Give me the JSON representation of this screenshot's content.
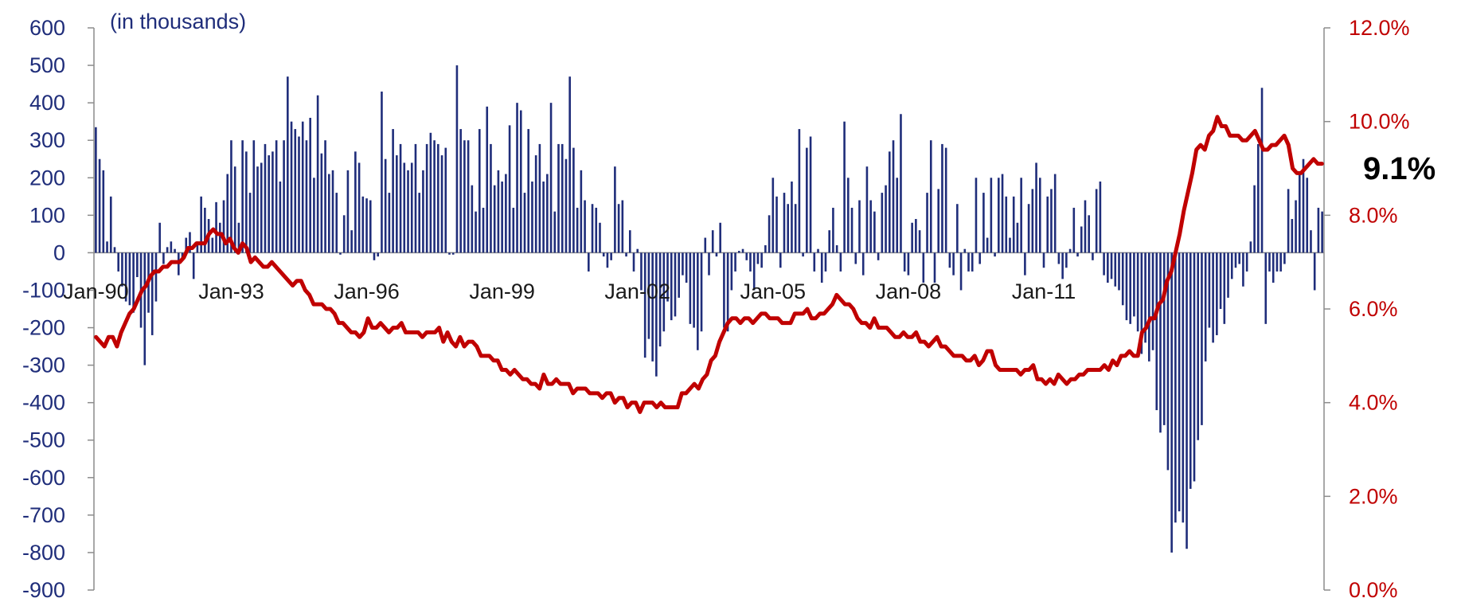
{
  "chart_data": {
    "type": "bar",
    "units_label": "(in thousands)",
    "callout": "9.1%",
    "colors": {
      "bars": "#1f2d7a",
      "line": "#c00000",
      "left_axis_text": "#1f2d7a",
      "right_axis_text": "#c00000",
      "axis": "#8c8c8c"
    },
    "left_axis": {
      "ylim": [
        -900,
        600
      ],
      "ticks": [
        600,
        500,
        400,
        300,
        200,
        100,
        0,
        -100,
        -200,
        -300,
        -400,
        -500,
        -600,
        -700,
        -800,
        -900
      ]
    },
    "right_axis": {
      "ylim": [
        0,
        12
      ],
      "ticks": [
        "12.0%",
        "10.0%",
        "8.0%",
        "6.0%",
        "4.0%",
        "2.0%",
        "0.0%"
      ]
    },
    "x_axis": {
      "start": "Jan-90",
      "end": "Aug-11",
      "tick_labels": [
        "Jan-90",
        "Jan-93",
        "Jan-96",
        "Jan-99",
        "Jan-02",
        "Jan-05",
        "Jan-08",
        "Jan-11"
      ]
    },
    "series": [
      {
        "kind": "bar",
        "axis": "left",
        "values": [
          335,
          250,
          220,
          30,
          150,
          15,
          -50,
          -90,
          -130,
          -140,
          -160,
          -65,
          -200,
          -300,
          -160,
          -220,
          -130,
          80,
          -30,
          15,
          30,
          10,
          -60,
          -20,
          40,
          55,
          -70,
          30,
          150,
          120,
          90,
          40,
          135,
          80,
          140,
          210,
          300,
          230,
          80,
          300,
          270,
          160,
          300,
          230,
          240,
          290,
          260,
          270,
          300,
          190,
          300,
          470,
          350,
          330,
          310,
          350,
          300,
          360,
          200,
          420,
          265,
          300,
          210,
          220,
          160,
          -5,
          100,
          220,
          60,
          270,
          240,
          150,
          145,
          140,
          -20,
          -10,
          430,
          250,
          160,
          330,
          260,
          290,
          240,
          220,
          240,
          290,
          160,
          220,
          290,
          320,
          300,
          290,
          260,
          280,
          -5,
          -5,
          500,
          330,
          300,
          300,
          180,
          110,
          330,
          120,
          390,
          290,
          180,
          220,
          190,
          210,
          340,
          120,
          400,
          380,
          160,
          330,
          190,
          260,
          290,
          190,
          210,
          400,
          110,
          290,
          290,
          250,
          470,
          280,
          120,
          220,
          140,
          -50,
          130,
          120,
          80,
          -10,
          -40,
          -20,
          230,
          130,
          140,
          -10,
          60,
          -50,
          10,
          -100,
          -280,
          -230,
          -290,
          -330,
          -250,
          -210,
          -130,
          -180,
          -170,
          -120,
          -60,
          -80,
          -190,
          -200,
          -260,
          -210,
          40,
          -60,
          60,
          -10,
          80,
          -200,
          -210,
          -100,
          -50,
          5,
          10,
          -20,
          -50,
          -100,
          -30,
          -40,
          20,
          100,
          200,
          150,
          -40,
          160,
          130,
          190,
          130,
          330,
          -10,
          280,
          310,
          -50,
          10,
          -80,
          -50,
          60,
          120,
          20,
          -50,
          350,
          200,
          120,
          -30,
          140,
          -60,
          230,
          140,
          110,
          -20,
          160,
          180,
          270,
          300,
          200,
          370,
          -50,
          -60,
          80,
          90,
          60,
          -80,
          160,
          300,
          -80,
          170,
          290,
          280,
          -40,
          -60,
          130,
          -100,
          10,
          -50,
          -50,
          200,
          -30,
          160,
          40,
          200,
          -10,
          200,
          210,
          150,
          40,
          150,
          80,
          200,
          -60,
          130,
          170,
          240,
          200,
          -40,
          150,
          170,
          210,
          -30,
          -70,
          -40,
          10,
          120,
          -10,
          70,
          140,
          100,
          -20,
          170,
          190,
          -60,
          -80,
          -70,
          -90,
          -100,
          -140,
          -180,
          -190,
          -170,
          -210,
          -270,
          -240,
          -290,
          -260,
          -420,
          -480,
          -460,
          -580,
          -800,
          -720,
          -690,
          -720,
          -790,
          -630,
          -610,
          -500,
          -460,
          -290,
          -200,
          -240,
          -220,
          -150,
          -190,
          -120,
          -70,
          -40,
          -30,
          -90,
          -50,
          30,
          180,
          290,
          440,
          -190,
          -50,
          -80,
          -50,
          -50,
          -30,
          170,
          90,
          140,
          210,
          250,
          200,
          60,
          -100,
          120,
          110
        ],
        "name": ""
      },
      {
        "kind": "line",
        "axis": "right",
        "values": [
          5.4,
          5.3,
          5.2,
          5.4,
          5.4,
          5.2,
          5.5,
          5.7,
          5.9,
          6.0,
          6.2,
          6.4,
          6.5,
          6.7,
          6.8,
          6.8,
          6.9,
          6.9,
          7.0,
          7.0,
          7.0,
          7.1,
          7.3,
          7.3,
          7.4,
          7.4,
          7.4,
          7.6,
          7.7,
          7.6,
          7.6,
          7.4,
          7.5,
          7.3,
          7.2,
          7.4,
          7.3,
          7.0,
          7.1,
          7.0,
          6.9,
          6.9,
          7.0,
          6.9,
          6.8,
          6.7,
          6.6,
          6.5,
          6.6,
          6.6,
          6.4,
          6.3,
          6.1,
          6.1,
          6.1,
          6.0,
          6.0,
          5.9,
          5.7,
          5.7,
          5.6,
          5.5,
          5.5,
          5.4,
          5.5,
          5.8,
          5.6,
          5.6,
          5.7,
          5.6,
          5.5,
          5.6,
          5.6,
          5.7,
          5.5,
          5.5,
          5.5,
          5.5,
          5.4,
          5.5,
          5.5,
          5.5,
          5.6,
          5.3,
          5.5,
          5.3,
          5.2,
          5.4,
          5.2,
          5.3,
          5.3,
          5.2,
          5.0,
          5.0,
          5.0,
          4.9,
          4.9,
          4.7,
          4.7,
          4.6,
          4.7,
          4.6,
          4.5,
          4.5,
          4.4,
          4.4,
          4.3,
          4.6,
          4.4,
          4.4,
          4.5,
          4.4,
          4.4,
          4.4,
          4.2,
          4.3,
          4.3,
          4.3,
          4.2,
          4.2,
          4.2,
          4.1,
          4.2,
          4.2,
          4.0,
          4.1,
          4.1,
          3.9,
          4.0,
          4.0,
          3.8,
          4.0,
          4.0,
          4.0,
          3.9,
          4.0,
          3.9,
          3.9,
          3.9,
          3.9,
          4.2,
          4.2,
          4.3,
          4.4,
          4.3,
          4.5,
          4.6,
          4.9,
          5.0,
          5.3,
          5.5,
          5.7,
          5.8,
          5.8,
          5.7,
          5.8,
          5.8,
          5.7,
          5.8,
          5.9,
          5.9,
          5.8,
          5.8,
          5.8,
          5.7,
          5.7,
          5.7,
          5.9,
          5.9,
          5.9,
          6.0,
          5.8,
          5.8,
          5.9,
          5.9,
          6.0,
          6.1,
          6.3,
          6.2,
          6.1,
          6.1,
          6.0,
          5.8,
          5.7,
          5.7,
          5.6,
          5.8,
          5.6,
          5.6,
          5.6,
          5.5,
          5.4,
          5.4,
          5.5,
          5.4,
          5.4,
          5.5,
          5.3,
          5.3,
          5.2,
          5.3,
          5.4,
          5.2,
          5.2,
          5.1,
          5.0,
          5.0,
          5.0,
          4.9,
          4.9,
          5.0,
          4.8,
          4.9,
          5.1,
          5.1,
          4.8,
          4.7,
          4.7,
          4.7,
          4.7,
          4.7,
          4.6,
          4.7,
          4.7,
          4.8,
          4.5,
          4.5,
          4.4,
          4.5,
          4.4,
          4.6,
          4.5,
          4.4,
          4.5,
          4.5,
          4.6,
          4.6,
          4.7,
          4.7,
          4.7,
          4.7,
          4.8,
          4.7,
          4.9,
          4.8,
          5.0,
          5.0,
          5.1,
          5.0,
          5.0,
          5.5,
          5.6,
          5.8,
          5.8,
          6.1,
          6.2,
          6.6,
          6.8,
          7.2,
          7.6,
          8.1,
          8.5,
          8.9,
          9.4,
          9.5,
          9.4,
          9.7,
          9.8,
          10.1,
          9.9,
          9.9,
          9.7,
          9.7,
          9.7,
          9.6,
          9.6,
          9.7,
          9.8,
          9.6,
          9.4,
          9.4,
          9.5,
          9.5,
          9.6,
          9.7,
          9.5,
          9.0,
          8.9,
          8.9,
          9.0,
          9.1,
          9.2,
          9.1,
          9.1
        ],
        "name": ""
      }
    ],
    "grid": false,
    "legend": "none"
  }
}
